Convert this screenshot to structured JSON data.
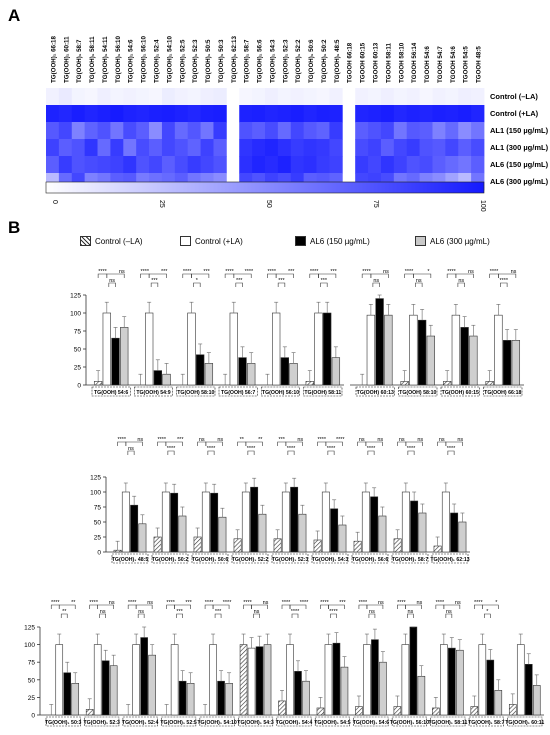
{
  "panels": {
    "a": "A",
    "b": "B"
  },
  "heatmap": {
    "columns": [
      "TG(OOH)₁ 66:18",
      "TG(OOH)₁ 60:11",
      "TG(OOH)₁ 58:7",
      "TG(OOH)₁ 58:11",
      "TG(OOH)₁ 54:11",
      "TG(OOH)₁ 56:10",
      "TG(OOH)₁ 54:6",
      "TG(OOH)₁ 56:10",
      "TG(OOH)₁ 52:4",
      "TG(OOH)₁ 54:10",
      "TG(OOH)₁ 52:5",
      "TG(OOH)₁ 52:3",
      "TG(OOH)₁ 50:5",
      "TG(OOH)₁ 50:3",
      "TG(OOH)₁ 62:13",
      "TG(OOH)₁ 58:7",
      "TG(OOH)₁ 56:6",
      "TG(OOH)₁ 54:3",
      "TG(OOH)₁ 52:3",
      "TG(OOH)₁ 52:2",
      "TG(OOH)₁ 50:6",
      "TG(OOH)₁ 50:2",
      "TG(OOH)₁ 48:5",
      "TGOOH 66:18",
      "TGOOH 60:15",
      "TGOOH 60:13",
      "TGOOH 58:11",
      "TGOOH 58:10",
      "TGOOH 56:14",
      "TGOOH 54:6",
      "TGOOH 54:7",
      "TGOOH 54:6",
      "TGOOH 54:5",
      "TGOOH 48:5"
    ],
    "rows": [
      "Control (–LA)",
      "Control (+LA)",
      "AL1 (150 µg/mL)",
      "AL1 (300 µg/mL)",
      "AL6 (150 µg/mL)",
      "AL6 (300 µg/mL)"
    ],
    "colorbar_ticks": [
      "0",
      "25",
      "50",
      "75",
      "100"
    ],
    "values": [
      [
        6,
        9,
        5,
        4,
        7,
        5,
        6,
        5,
        4,
        8,
        6,
        5,
        7,
        8,
        null,
        4,
        5,
        7,
        5,
        6,
        5,
        4,
        6,
        null,
        6,
        5,
        7,
        5,
        6,
        4,
        6,
        5,
        7,
        6
      ],
      [
        96,
        94,
        98,
        95,
        97,
        99,
        96,
        95,
        97,
        98,
        96,
        94,
        97,
        98,
        null,
        96,
        97,
        95,
        96,
        98,
        95,
        97,
        96,
        null,
        95,
        96,
        98,
        94,
        96,
        95,
        97,
        96,
        98,
        95
      ],
      [
        72,
        80,
        55,
        68,
        75,
        60,
        78,
        70,
        50,
        80,
        65,
        73,
        60,
        85,
        null,
        75,
        70,
        78,
        65,
        80,
        72,
        68,
        85,
        null,
        70,
        75,
        80,
        60,
        72,
        70,
        55,
        65,
        50,
        60
      ],
      [
        82,
        70,
        75,
        88,
        65,
        85,
        60,
        78,
        70,
        80,
        75,
        68,
        82,
        70,
        null,
        88,
        92,
        95,
        90,
        85,
        88,
        86,
        80,
        null,
        78,
        82,
        70,
        80,
        85,
        75,
        72,
        80,
        70,
        78
      ],
      [
        70,
        85,
        75,
        78,
        80,
        82,
        88,
        75,
        80,
        70,
        78,
        85,
        80,
        75,
        null,
        90,
        95,
        92,
        96,
        88,
        90,
        85,
        82,
        null,
        85,
        80,
        88,
        82,
        75,
        78,
        70,
        65,
        60,
        70
      ],
      [
        30,
        65,
        80,
        55,
        60,
        70,
        72,
        58,
        62,
        65,
        70,
        60,
        55,
        50,
        null,
        80,
        75,
        82,
        78,
        85,
        70,
        72,
        68,
        null,
        80,
        82,
        78,
        60,
        65,
        55,
        50,
        40,
        30,
        60
      ]
    ]
  },
  "legend": {
    "items": [
      "Control (–LA)",
      "Control (+LA)",
      "AL6 (150 µg/mL)",
      "AL6 (300 µg/mL)"
    ]
  },
  "chart_data": [
    {
      "type": "bar",
      "categories": [
        "TG(OOH) 54:6",
        "TG(OOH) 54:9",
        "TG(OOH) 58:10",
        "TG(OOH) 56:7",
        "TG(OOH) 56:10",
        "TG(OOH) 58:11"
      ],
      "y_ticks": [
        "0",
        "25",
        "50",
        "75",
        "100",
        "125"
      ],
      "ylim": [
        0,
        125
      ],
      "series": [
        {
          "name": "Control (–LA)",
          "values": [
            5,
            0,
            0,
            0,
            0,
            5
          ]
        },
        {
          "name": "Control (+LA)",
          "values": [
            100,
            100,
            100,
            100,
            100,
            100
          ]
        },
        {
          "name": "AL6 (150 µg/mL)",
          "values": [
            65,
            20,
            42,
            38,
            38,
            100
          ]
        },
        {
          "name": "AL6 (300 µg/mL)",
          "values": [
            80,
            15,
            30,
            30,
            30,
            38
          ]
        }
      ]
    },
    {
      "type": "bar",
      "categories": [
        "TG(OOH) 60:13",
        "TG(OOH) 58:10",
        "TG(OOH) 60:15",
        "TG(OOH) 66:18"
      ],
      "y_ticks": [],
      "ylim": [
        0,
        125
      ],
      "series": [
        {
          "name": "Control (–LA)",
          "values": [
            0,
            5,
            5,
            5
          ]
        },
        {
          "name": "Control (+LA)",
          "values": [
            97,
            97,
            97,
            97
          ]
        },
        {
          "name": "AL6 (150 µg/mL)",
          "values": [
            120,
            90,
            80,
            62
          ]
        },
        {
          "name": "AL6 (300 µg/mL)",
          "values": [
            97,
            68,
            68,
            62
          ]
        }
      ]
    },
    {
      "type": "bar",
      "categories": [
        "TG(OOH)₁ 48:5",
        "TG(OOH)₁ 50:2",
        "TG(OOH)₁ 50:6",
        "TG(OOH)₁ 52:2",
        "TG(OOH)₁ 52:3",
        "TG(OOH)₁ 54:3",
        "TG(OOH)₁ 56:6",
        "TG(OOH)₁ 58:7",
        "TG(OOH)₁ 62:13"
      ],
      "y_ticks": [
        "0",
        "25",
        "50",
        "75",
        "100",
        "125"
      ],
      "ylim": [
        0,
        125
      ],
      "series": [
        {
          "name": "Control (–LA)",
          "values": [
            3,
            25,
            25,
            22,
            22,
            20,
            18,
            22,
            10
          ]
        },
        {
          "name": "Control (+LA)",
          "values": [
            100,
            100,
            100,
            100,
            100,
            100,
            100,
            100,
            100
          ]
        },
        {
          "name": "AL6 (150 µg/mL)",
          "values": [
            78,
            98,
            98,
            108,
            108,
            72,
            92,
            85,
            65
          ]
        },
        {
          "name": "AL6 (300 µg/mL)",
          "values": [
            47,
            60,
            58,
            63,
            63,
            45,
            60,
            65,
            50
          ]
        }
      ]
    },
    {
      "type": "bar",
      "categories": [
        "TG(OOH)₁ 50:3",
        "TG(OOH)₁ 52:3",
        "TG(OOH)₁ 52:4",
        "TG(OOH)₁ 52:5",
        "TG(OOH)₁ 54:10",
        "TG(OOH)₁ 54:3",
        "TG(OOH)₁ 54:4",
        "TG(OOH)₁ 54:5",
        "TG(OOH)₁ 54:6",
        "TG(OOH)₁ 56:10",
        "TG(OOH)₁ 58:11",
        "TG(OOH)₁ 58:7",
        "TG(OOH)₁ 60:11"
      ],
      "y_ticks": [
        "0",
        "25",
        "50",
        "75",
        "100",
        "125"
      ],
      "ylim": [
        0,
        125
      ],
      "series": [
        {
          "name": "Control (–LA)",
          "values": [
            0,
            8,
            0,
            0,
            0,
            100,
            20,
            10,
            12,
            12,
            10,
            12,
            15
          ]
        },
        {
          "name": "Control (+LA)",
          "values": [
            100,
            100,
            100,
            100,
            100,
            95,
            100,
            100,
            100,
            100,
            100,
            100,
            100
          ]
        },
        {
          "name": "AL6 (150 µg/mL)",
          "values": [
            60,
            77,
            110,
            48,
            48,
            97,
            62,
            102,
            107,
            125,
            95,
            78,
            72
          ]
        },
        {
          "name": "AL6 (300 µg/mL)",
          "values": [
            45,
            70,
            85,
            45,
            45,
            100,
            48,
            68,
            75,
            55,
            92,
            35,
            42
          ]
        }
      ]
    }
  ],
  "significance": [
    [
      "****",
      "ns",
      "ns",
      "****",
      "***",
      "***",
      "****",
      "***",
      "*",
      "****",
      "****",
      "***",
      "****",
      "***",
      "***",
      "****",
      "***",
      "***"
    ],
    [
      "****",
      "ns",
      "ns",
      "****",
      "*",
      "ns",
      "****",
      "ns",
      "ns",
      "****",
      "ns",
      "****"
    ],
    [
      "****",
      "ns",
      "ns",
      "****",
      "***",
      "****",
      "ns",
      "ns",
      "****",
      "**",
      "**",
      "****",
      "***",
      "ns",
      "****",
      "****",
      "****",
      "****",
      "ns",
      "ns",
      "****",
      "ns",
      "ns",
      "****",
      "ns",
      "ns",
      "****",
      "ns",
      "ns"
    ],
    [
      "****",
      "**",
      "**",
      "****",
      "ns",
      "ns",
      "****",
      "ns",
      "ns",
      "****",
      "***",
      "***",
      "****",
      "****",
      "***",
      "****",
      "ns",
      "ns",
      "****",
      "****",
      "****",
      "****",
      "***",
      "****",
      "****",
      "ns",
      "ns",
      "****",
      "ns",
      "ns",
      "****",
      "ns",
      "ns",
      "****",
      "*",
      "*"
    ]
  ]
}
